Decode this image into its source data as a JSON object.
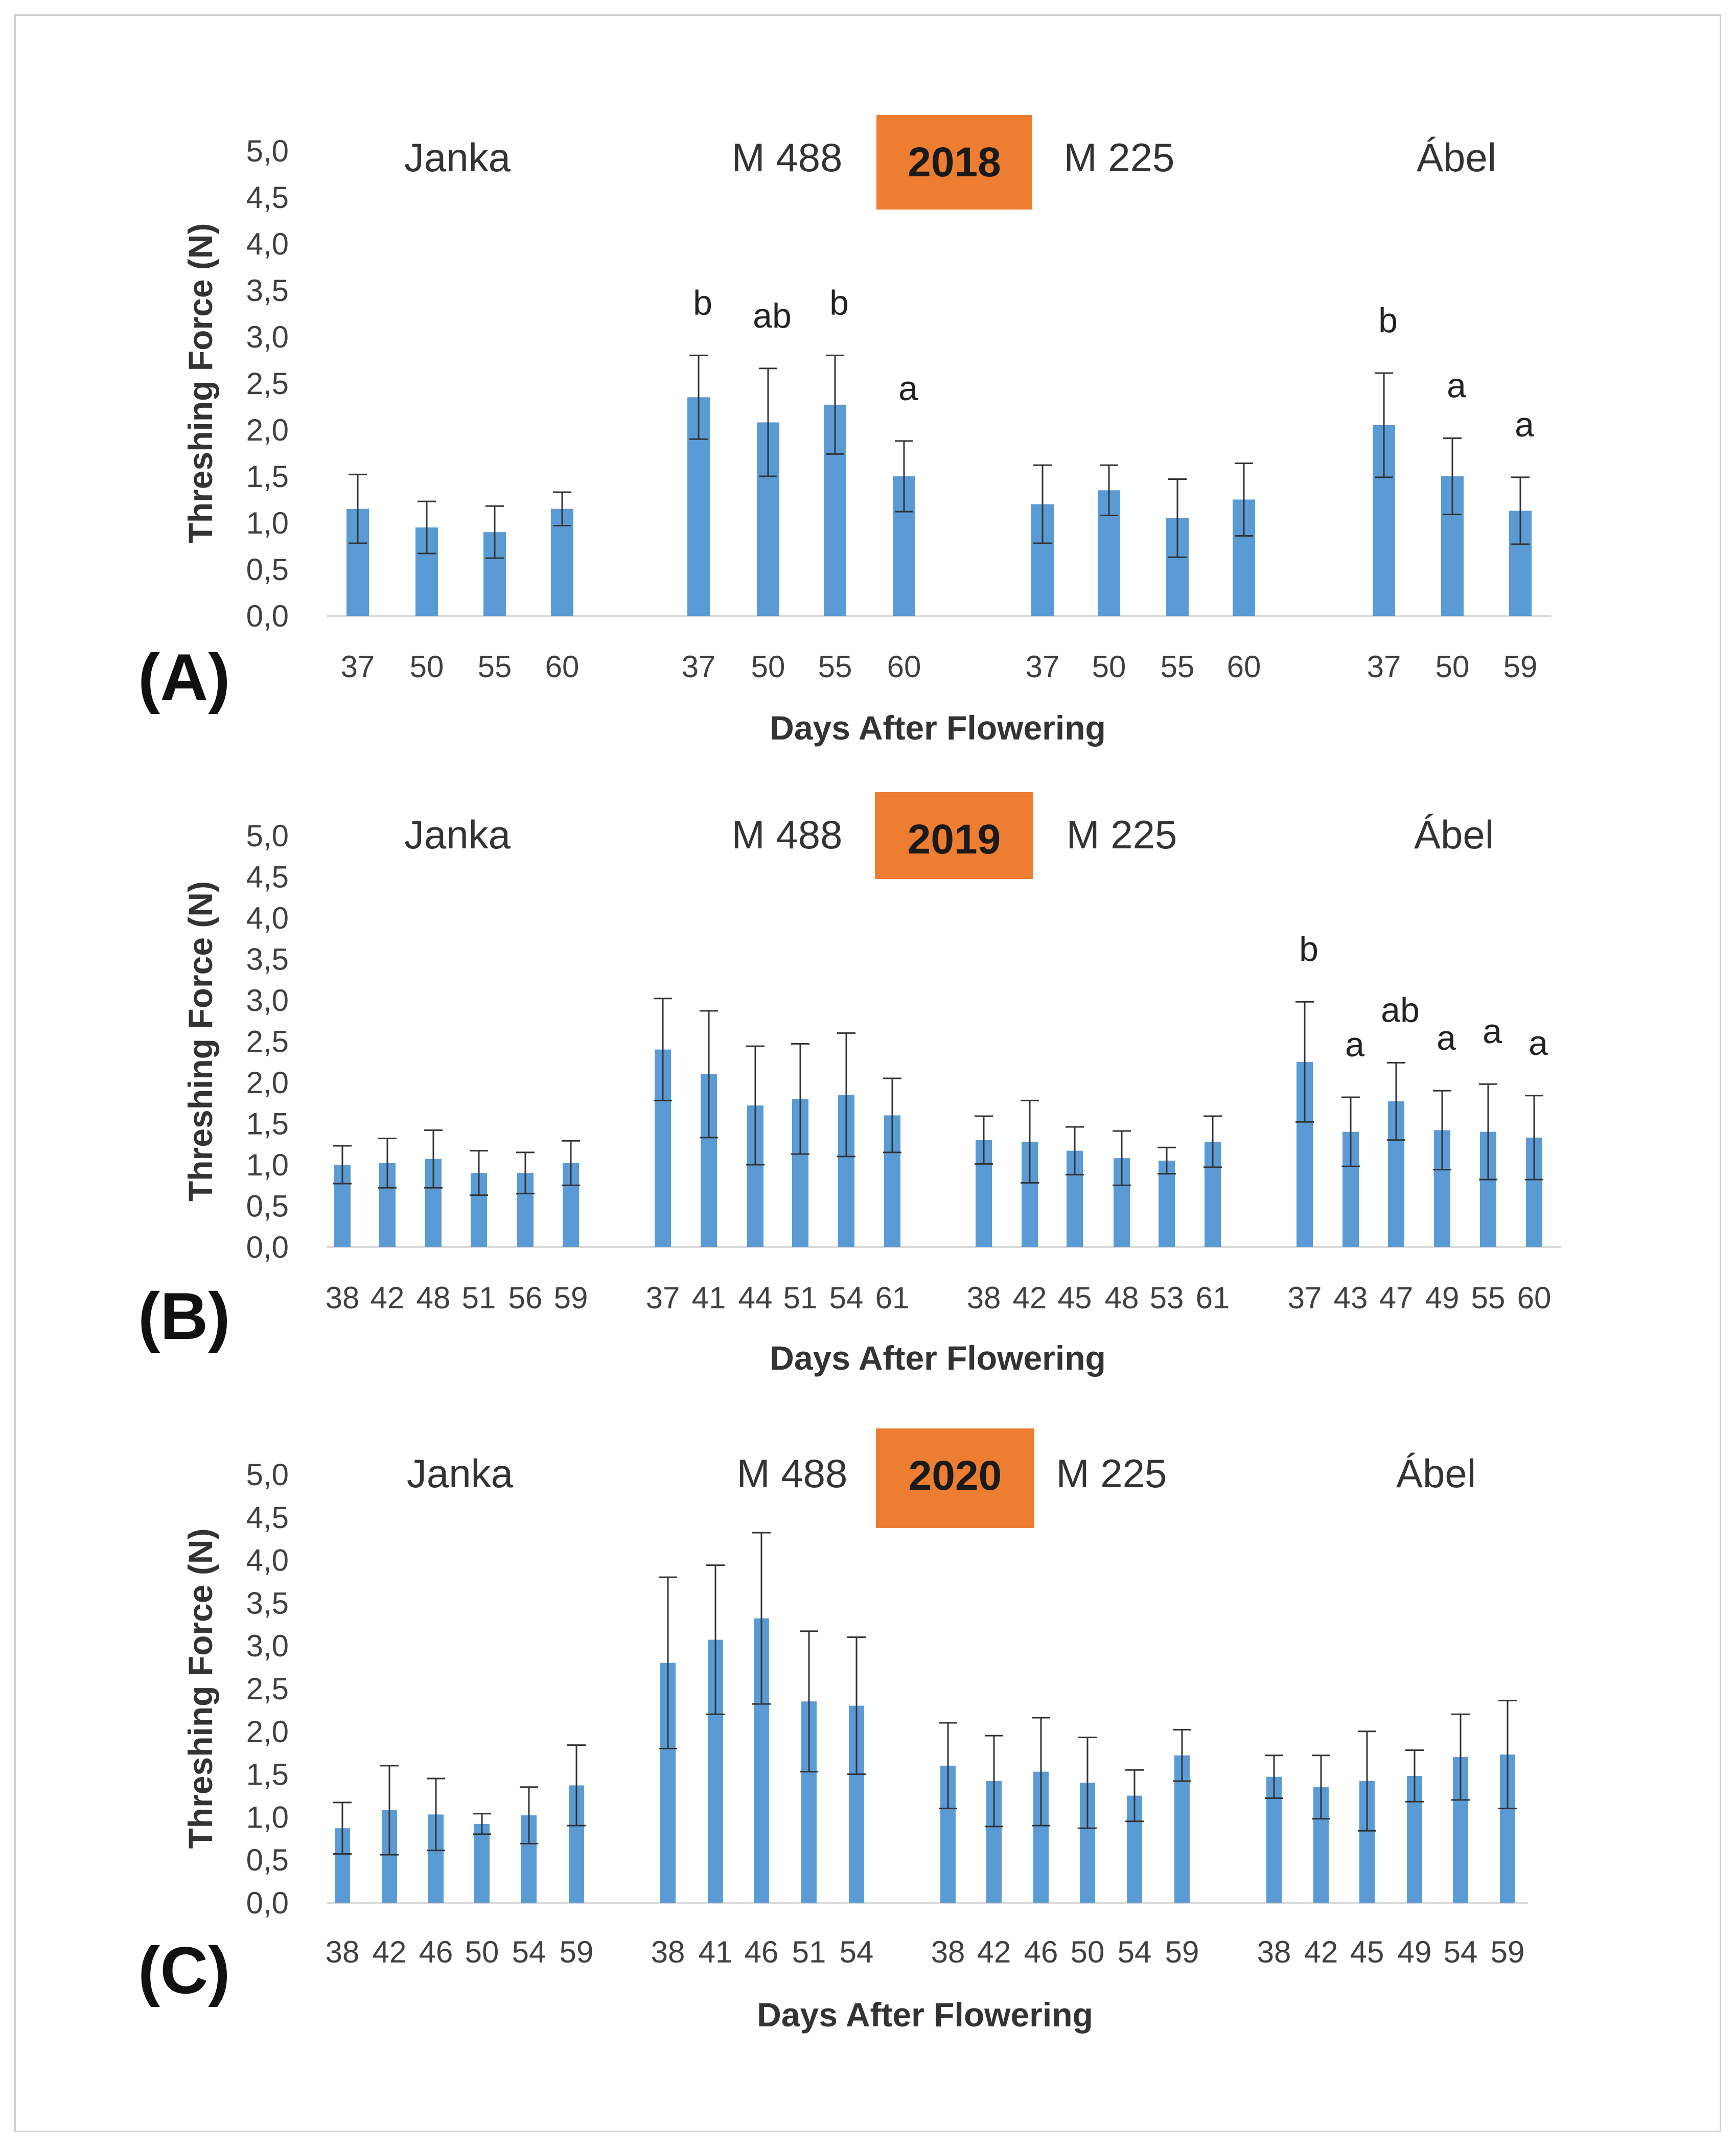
{
  "colors": {
    "bar": "#5b9bd5",
    "year_box": "#ed7d31",
    "error_bar": "#333333",
    "axis_line": "#d9d9d9"
  },
  "chart_data": [
    {
      "type": "bar",
      "panel_label": "(A)",
      "year": "2018",
      "ylabel": "Threshing Force (N)",
      "xlabel": "Days After Flowering",
      "ylim": [
        0,
        5
      ],
      "yticks": [
        "0,0",
        "0,5",
        "1,0",
        "1,5",
        "2,0",
        "2,5",
        "3,0",
        "3,5",
        "4,0",
        "4,5",
        "5,0"
      ],
      "groups": [
        {
          "name": "Janka",
          "categories": [
            "37",
            "50",
            "55",
            "60"
          ],
          "values": [
            1.15,
            0.95,
            0.9,
            1.15
          ],
          "errors": [
            0.37,
            0.28,
            0.28,
            0.18
          ],
          "letters": [
            "",
            "",
            "",
            ""
          ]
        },
        {
          "name": "M 488",
          "categories": [
            "37",
            "50",
            "55",
            "60"
          ],
          "values": [
            2.35,
            2.08,
            2.27,
            1.5
          ],
          "errors": [
            0.45,
            0.58,
            0.53,
            0.38
          ],
          "letters": [
            "b",
            "ab",
            "b",
            "a"
          ]
        },
        {
          "name": "M 225",
          "categories": [
            "37",
            "50",
            "55",
            "60"
          ],
          "values": [
            1.2,
            1.35,
            1.05,
            1.25
          ],
          "errors": [
            0.42,
            0.27,
            0.42,
            0.39
          ],
          "letters": [
            "",
            "",
            "",
            ""
          ]
        },
        {
          "name": "Ábel",
          "categories": [
            "37",
            "50",
            "59"
          ],
          "values": [
            2.05,
            1.5,
            1.13
          ],
          "errors": [
            0.56,
            0.41,
            0.36
          ],
          "letters": [
            "b",
            "a",
            "a"
          ]
        }
      ]
    },
    {
      "type": "bar",
      "panel_label": "(B)",
      "year": "2019",
      "ylabel": "Threshing Force (N)",
      "xlabel": "Days After Flowering",
      "ylim": [
        0,
        5
      ],
      "yticks": [
        "0,0",
        "0,5",
        "1,0",
        "1,5",
        "2,0",
        "2,5",
        "3,0",
        "3,5",
        "4,0",
        "4,5",
        "5,0"
      ],
      "groups": [
        {
          "name": "Janka",
          "categories": [
            "38",
            "42",
            "48",
            "51",
            "56",
            "59"
          ],
          "values": [
            1.0,
            1.02,
            1.07,
            0.9,
            0.9,
            1.02
          ],
          "errors": [
            0.23,
            0.3,
            0.35,
            0.27,
            0.25,
            0.27
          ],
          "letters": [
            "",
            "",
            "",
            "",
            "",
            ""
          ]
        },
        {
          "name": "M 488",
          "categories": [
            "37",
            "41",
            "44",
            "51",
            "54",
            "61"
          ],
          "values": [
            2.4,
            2.1,
            1.72,
            1.8,
            1.85,
            1.6
          ],
          "errors": [
            0.62,
            0.77,
            0.72,
            0.67,
            0.75,
            0.45
          ],
          "letters": [
            "",
            "",
            "",
            "",
            "",
            ""
          ]
        },
        {
          "name": "M 225",
          "categories": [
            "38",
            "42",
            "45",
            "48",
            "53",
            "61"
          ],
          "values": [
            1.3,
            1.28,
            1.17,
            1.08,
            1.05,
            1.28
          ],
          "errors": [
            0.29,
            0.5,
            0.29,
            0.33,
            0.16,
            0.31
          ],
          "letters": [
            "",
            "",
            "",
            "",
            "",
            ""
          ]
        },
        {
          "name": "Ábel",
          "categories": [
            "37",
            "43",
            "47",
            "49",
            "55",
            "60"
          ],
          "values": [
            2.25,
            1.4,
            1.77,
            1.42,
            1.4,
            1.33
          ],
          "errors": [
            0.73,
            0.42,
            0.47,
            0.48,
            0.58,
            0.51
          ],
          "letters": [
            "b",
            "a",
            "ab",
            "a",
            "a",
            "a"
          ]
        }
      ]
    },
    {
      "type": "bar",
      "panel_label": "(C)",
      "year": "2020",
      "ylabel": "Threshing Force (N)",
      "xlabel": "Days After Flowering",
      "ylim": [
        0,
        5
      ],
      "yticks": [
        "0,0",
        "0,5",
        "1,0",
        "1,5",
        "2,0",
        "2,5",
        "3,0",
        "3,5",
        "4,0",
        "4,5",
        "5,0"
      ],
      "groups": [
        {
          "name": "Janka",
          "categories": [
            "38",
            "42",
            "46",
            "50",
            "54",
            "59"
          ],
          "values": [
            0.87,
            1.08,
            1.03,
            0.92,
            1.02,
            1.37
          ],
          "errors": [
            0.3,
            0.52,
            0.42,
            0.12,
            0.33,
            0.47
          ],
          "letters": [
            "",
            "",
            "",
            "",
            "",
            ""
          ]
        },
        {
          "name": "M 488",
          "categories": [
            "38",
            "41",
            "46",
            "51",
            "54"
          ],
          "values": [
            2.8,
            3.07,
            3.32,
            2.35,
            2.3
          ],
          "errors": [
            1.0,
            0.87,
            1.0,
            0.82,
            0.8
          ],
          "letters": [
            "",
            "",
            "",
            "",
            ""
          ]
        },
        {
          "name": "M 225",
          "categories": [
            "38",
            "42",
            "46",
            "50",
            "54",
            "59"
          ],
          "values": [
            1.6,
            1.42,
            1.53,
            1.4,
            1.25,
            1.72
          ],
          "errors": [
            0.5,
            0.53,
            0.63,
            0.53,
            0.3,
            0.3
          ],
          "letters": [
            "",
            "",
            "",
            "",
            "",
            ""
          ]
        },
        {
          "name": "Ábel",
          "categories": [
            "38",
            "42",
            "45",
            "49",
            "54",
            "59"
          ],
          "values": [
            1.47,
            1.35,
            1.42,
            1.48,
            1.7,
            1.73
          ],
          "errors": [
            0.25,
            0.37,
            0.58,
            0.3,
            0.5,
            0.63
          ],
          "letters": [
            "",
            "",
            "",
            "",
            "",
            ""
          ]
        }
      ]
    }
  ]
}
